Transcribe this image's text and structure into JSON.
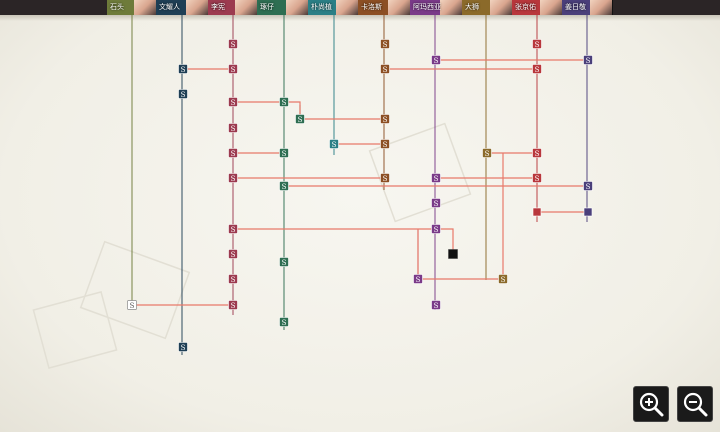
{
  "characters": [
    {
      "name": "石头",
      "color": "#6e7b3a"
    },
    {
      "name": "文耀人",
      "color": "#1f3f55"
    },
    {
      "name": "李宪",
      "color": "#9c3a4f"
    },
    {
      "name": "琢仔",
      "color": "#2e6e52"
    },
    {
      "name": "朴尚植",
      "color": "#2b7f86"
    },
    {
      "name": "卡洛斯",
      "color": "#8c4f24"
    },
    {
      "name": "阿玛西亚",
      "color": "#7a3a88"
    },
    {
      "name": "大狮",
      "color": "#8b6a2a"
    },
    {
      "name": "张京佑",
      "color": "#b8373c"
    },
    {
      "name": "姜日敬",
      "color": "#4a3f7a"
    }
  ],
  "node_label": "S",
  "zoom": {
    "in_icon": "zoom-in-icon",
    "out_icon": "zoom-out-icon"
  }
}
